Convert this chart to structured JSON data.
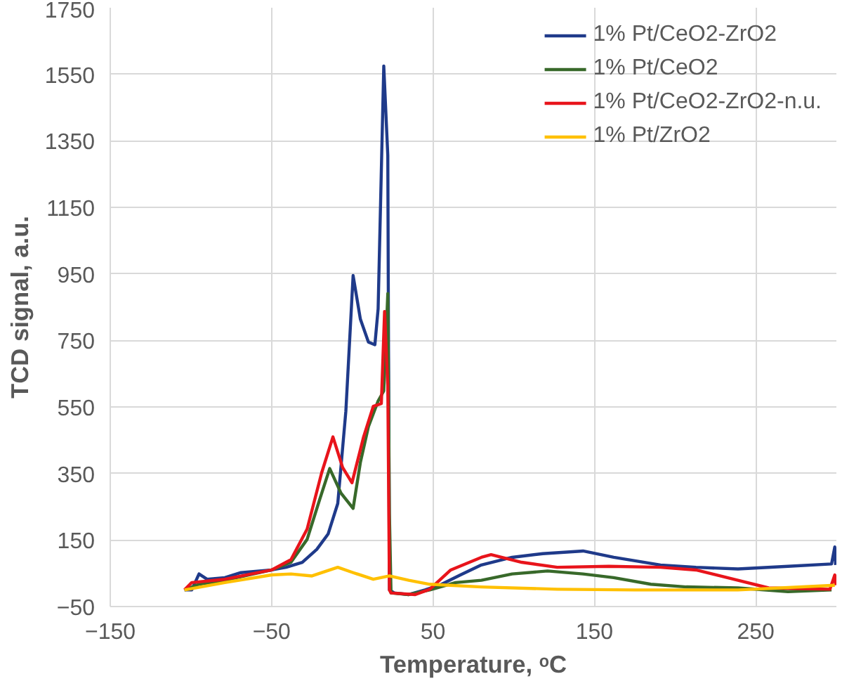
{
  "chart_data": {
    "type": "line",
    "xlabel": "Temperature, ᵒC",
    "ylabel": "TCD signal, a.u.",
    "xlim": [
      -150,
      300
    ],
    "xticks": [
      -150,
      -50,
      50,
      150,
      250
    ],
    "ylim": [
      -50,
      1750
    ],
    "yticks": [
      -50,
      150,
      350,
      550,
      750,
      950,
      1150,
      1350,
      1550,
      1750
    ],
    "grid": true,
    "legend": "top right",
    "marker": "none",
    "line_style": "solid",
    "series": [
      {
        "name": "1% Pt/CeO2-ZrO2",
        "color": "#1f3a8a",
        "x": [
          -104,
          -99.5,
          -95,
          -90,
          -79,
          -69,
          -50,
          -41,
          -31,
          -22,
          -15,
          -9,
          -4,
          0.5,
          5,
          10,
          14,
          16,
          19.5,
          22,
          23,
          26,
          35,
          45,
          54,
          67,
          80,
          99,
          118,
          143,
          162,
          191,
          213,
          239,
          270,
          297,
          299,
          299.5
        ],
        "values": [
          0,
          0,
          48,
          32,
          37,
          52,
          60,
          68,
          83,
          122,
          168,
          260,
          537,
          945,
          814,
          745,
          737,
          845,
          1575,
          1306,
          0,
          -9,
          -14,
          0,
          14,
          45,
          75,
          98,
          109,
          117,
          98,
          75,
          68,
          63,
          71,
          78,
          129,
          75
        ]
      },
      {
        "name": "1% Pt/CeO2",
        "color": "#38692a",
        "x": [
          -104,
          -95,
          -79,
          -50,
          -38,
          -28,
          -20,
          -14,
          -7,
          0.5,
          5,
          10,
          16,
          19.5,
          22,
          23,
          24,
          35,
          48,
          64,
          80,
          99,
          121,
          143,
          162,
          185,
          207,
          239,
          270,
          297
        ],
        "values": [
          0,
          17,
          29,
          60,
          83,
          152,
          275,
          365,
          291,
          245,
          383,
          491,
          568,
          598,
          891,
          229,
          -9,
          -14,
          0,
          22,
          29,
          48,
          57,
          48,
          37,
          17,
          9,
          6,
          -5,
          0
        ]
      },
      {
        "name": "1% Pt/CeO2-ZrO2-n.u.",
        "color": "#e8141b",
        "x": [
          -104,
          -99.5,
          -79,
          -50,
          -38,
          -28,
          -19,
          -12,
          -6,
          -0.2,
          7,
          13,
          18,
          20,
          22,
          23,
          24,
          39,
          48,
          61,
          80,
          86,
          105,
          127,
          159,
          191,
          213,
          239,
          258,
          296,
          299,
          299.5
        ],
        "values": [
          0,
          22,
          32,
          60,
          91,
          183,
          352,
          460,
          368,
          322,
          460,
          552,
          560,
          837,
          614,
          0,
          -9,
          -14,
          2,
          60,
          98,
          106,
          83,
          68,
          71,
          68,
          60,
          29,
          6,
          2,
          45,
          14
        ]
      },
      {
        "name": "1% Pt/ZrO2",
        "color": "#ffc000",
        "x": [
          -104,
          -79,
          -50,
          -38,
          -25,
          -9,
          0.5,
          13,
          23,
          35,
          48,
          80,
          127,
          175,
          239,
          299
        ],
        "values": [
          0,
          22,
          45,
          48,
          42,
          68,
          52,
          32,
          42,
          29,
          17,
          9,
          2,
          0,
          0,
          14
        ]
      }
    ]
  }
}
